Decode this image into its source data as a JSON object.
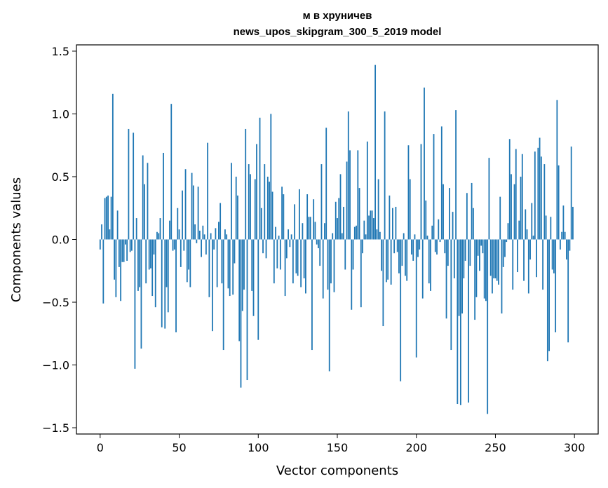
{
  "chart_data": {
    "type": "bar",
    "title": "м в хруничев",
    "subtitle": "news_upos_skipgram_300_5_2019 model",
    "xlabel": "Vector components",
    "ylabel": "Components values",
    "xlim": [
      -15,
      315
    ],
    "ylim": [
      -1.55,
      1.55
    ],
    "xticks": [
      0,
      50,
      100,
      150,
      200,
      250,
      300
    ],
    "yticks": [
      -1.5,
      -1.0,
      -0.5,
      0.0,
      0.5,
      1.0,
      1.5
    ],
    "xtick_labels": [
      "0",
      "50",
      "100",
      "150",
      "200",
      "250",
      "300"
    ],
    "ytick_labels": [
      "−1.5",
      "−1.0",
      "−0.5",
      "0.0",
      "0.5",
      "1.0",
      "1.5"
    ],
    "bar_color": "#1f77b4",
    "grid": false,
    "x": [
      0,
      1,
      2,
      3,
      4,
      5,
      6,
      7,
      8,
      9,
      10,
      11,
      12,
      13,
      14,
      15,
      16,
      17,
      18,
      19,
      20,
      21,
      22,
      23,
      24,
      25,
      26,
      27,
      28,
      29,
      30,
      31,
      32,
      33,
      34,
      35,
      36,
      37,
      38,
      39,
      40,
      41,
      42,
      43,
      44,
      45,
      46,
      47,
      48,
      49,
      50,
      51,
      52,
      53,
      54,
      55,
      56,
      57,
      58,
      59,
      60,
      61,
      62,
      63,
      64,
      65,
      66,
      67,
      68,
      69,
      70,
      71,
      72,
      73,
      74,
      75,
      76,
      77,
      78,
      79,
      80,
      81,
      82,
      83,
      84,
      85,
      86,
      87,
      88,
      89,
      90,
      91,
      92,
      93,
      94,
      95,
      96,
      97,
      98,
      99,
      100,
      101,
      102,
      103,
      104,
      105,
      106,
      107,
      108,
      109,
      110,
      111,
      112,
      113,
      114,
      115,
      116,
      117,
      118,
      119,
      120,
      121,
      122,
      123,
      124,
      125,
      126,
      127,
      128,
      129,
      130,
      131,
      132,
      133,
      134,
      135,
      136,
      137,
      138,
      139,
      140,
      141,
      142,
      143,
      144,
      145,
      146,
      147,
      148,
      149,
      150,
      151,
      152,
      153,
      154,
      155,
      156,
      157,
      158,
      159,
      160,
      161,
      162,
      163,
      164,
      165,
      166,
      167,
      168,
      169,
      170,
      171,
      172,
      173,
      174,
      175,
      176,
      177,
      178,
      179,
      180,
      181,
      182,
      183,
      184,
      185,
      186,
      187,
      188,
      189,
      190,
      191,
      192,
      193,
      194,
      195,
      196,
      197,
      198,
      199,
      200,
      201,
      202,
      203,
      204,
      205,
      206,
      207,
      208,
      209,
      210,
      211,
      212,
      213,
      214,
      215,
      216,
      217,
      218,
      219,
      220,
      221,
      222,
      223,
      224,
      225,
      226,
      227,
      228,
      229,
      230,
      231,
      232,
      233,
      234,
      235,
      236,
      237,
      238,
      239,
      240,
      241,
      242,
      243,
      244,
      245,
      246,
      247,
      248,
      249,
      250,
      251,
      252,
      253,
      254,
      255,
      256,
      257,
      258,
      259,
      260,
      261,
      262,
      263,
      264,
      265,
      266,
      267,
      268,
      269,
      270,
      271,
      272,
      273,
      274,
      275,
      276,
      277,
      278,
      279,
      280,
      281,
      282,
      283,
      284,
      285,
      286,
      287,
      288,
      289,
      290,
      291,
      292,
      293,
      294,
      295,
      296,
      297,
      298,
      299
    ],
    "values": [
      -0.08,
      0.12,
      -0.51,
      0.33,
      0.34,
      0.35,
      0.08,
      0.34,
      1.16,
      -0.32,
      -0.46,
      0.23,
      -0.22,
      -0.49,
      -0.18,
      -0.18,
      -0.04,
      -0.17,
      0.88,
      -0.1,
      -0.09,
      0.85,
      -1.03,
      0.17,
      -0.41,
      -0.38,
      -0.87,
      0.67,
      0.44,
      -0.35,
      0.61,
      -0.24,
      -0.23,
      -0.45,
      -0.12,
      -0.54,
      0.06,
      0.05,
      0.17,
      -0.7,
      0.69,
      -0.71,
      -0.38,
      -0.58,
      0.15,
      1.08,
      -0.09,
      -0.08,
      -0.74,
      0.25,
      0.08,
      -0.22,
      0.39,
      -0.09,
      0.56,
      -0.34,
      -0.24,
      -0.38,
      0.53,
      0.43,
      0.12,
      -0.03,
      0.42,
      0.07,
      -0.14,
      0.11,
      0.04,
      -0.12,
      0.77,
      -0.46,
      0.05,
      -0.73,
      -0.08,
      0.09,
      -0.38,
      0.14,
      0.29,
      -0.35,
      -0.88,
      0.08,
      0.04,
      -0.39,
      -0.45,
      0.61,
      -0.44,
      -0.19,
      0.5,
      0.35,
      -0.81,
      -1.18,
      -0.57,
      -0.4,
      0.88,
      -1.12,
      0.6,
      0.52,
      -0.41,
      -0.61,
      0.48,
      0.76,
      -0.8,
      0.97,
      0.25,
      -0.11,
      0.6,
      -0.15,
      0.5,
      0.46,
      1.0,
      0.38,
      -0.35,
      0.1,
      -0.23,
      0.03,
      -0.24,
      0.42,
      0.36,
      -0.45,
      -0.15,
      0.08,
      -0.06,
      0.04,
      -0.35,
      0.28,
      -0.27,
      -0.29,
      0.4,
      -0.38,
      0.13,
      -0.31,
      -0.43,
      0.36,
      0.18,
      0.18,
      -0.88,
      0.32,
      0.14,
      -0.04,
      -0.07,
      -0.21,
      0.6,
      -0.47,
      0.13,
      0.89,
      -0.4,
      -1.05,
      -0.35,
      0.05,
      -0.42,
      0.3,
      0.17,
      0.33,
      0.52,
      0.05,
      0.26,
      -0.24,
      0.62,
      1.02,
      0.71,
      -0.56,
      -0.24,
      0.1,
      0.11,
      0.71,
      0.41,
      -0.54,
      -0.11,
      0.15,
      0.04,
      0.78,
      0.19,
      0.23,
      0.23,
      0.17,
      1.39,
      0.08,
      0.48,
      0.06,
      -0.25,
      -0.69,
      1.02,
      -0.34,
      -0.32,
      0.35,
      -0.36,
      0.25,
      -0.11,
      0.26,
      -0.1,
      -0.27,
      -1.13,
      -0.21,
      0.05,
      -0.29,
      -0.33,
      0.75,
      0.48,
      -0.12,
      -0.17,
      0.04,
      -0.94,
      -0.14,
      -0.08,
      0.76,
      -0.47,
      1.21,
      0.31,
      0.03,
      -0.35,
      -0.41,
      0.11,
      0.84,
      -0.1,
      -0.12,
      0.16,
      -0.02,
      0.9,
      0.44,
      -0.11,
      -0.63,
      -0.21,
      0.41,
      -0.88,
      0.22,
      -0.31,
      1.03,
      -1.31,
      -0.61,
      -1.32,
      -0.59,
      -0.31,
      -0.17,
      0.37,
      -1.3,
      -0.21,
      0.45,
      0.25,
      -0.64,
      -0.46,
      -0.13,
      -0.25,
      -0.05,
      -0.11,
      -0.47,
      -0.49,
      -1.39,
      0.65,
      -0.29,
      -0.43,
      -0.31,
      -0.31,
      -0.33,
      -0.36,
      0.34,
      -0.59,
      -0.22,
      -0.14,
      -0.02,
      0.13,
      0.8,
      0.52,
      -0.4,
      0.44,
      0.72,
      -0.26,
      0.15,
      0.5,
      0.68,
      -0.33,
      0.24,
      0.08,
      -0.43,
      -0.16,
      0.29,
      0.03,
      0.7,
      -0.3,
      0.73,
      0.81,
      0.66,
      -0.4,
      0.6,
      0.19,
      -0.97,
      -0.89,
      0.18,
      -0.24,
      -0.27,
      -0.74,
      1.11,
      0.59,
      -0.08,
      0.06,
      0.27,
      0.06,
      -0.16,
      -0.82,
      -0.09,
      0.74,
      0.26
    ]
  }
}
